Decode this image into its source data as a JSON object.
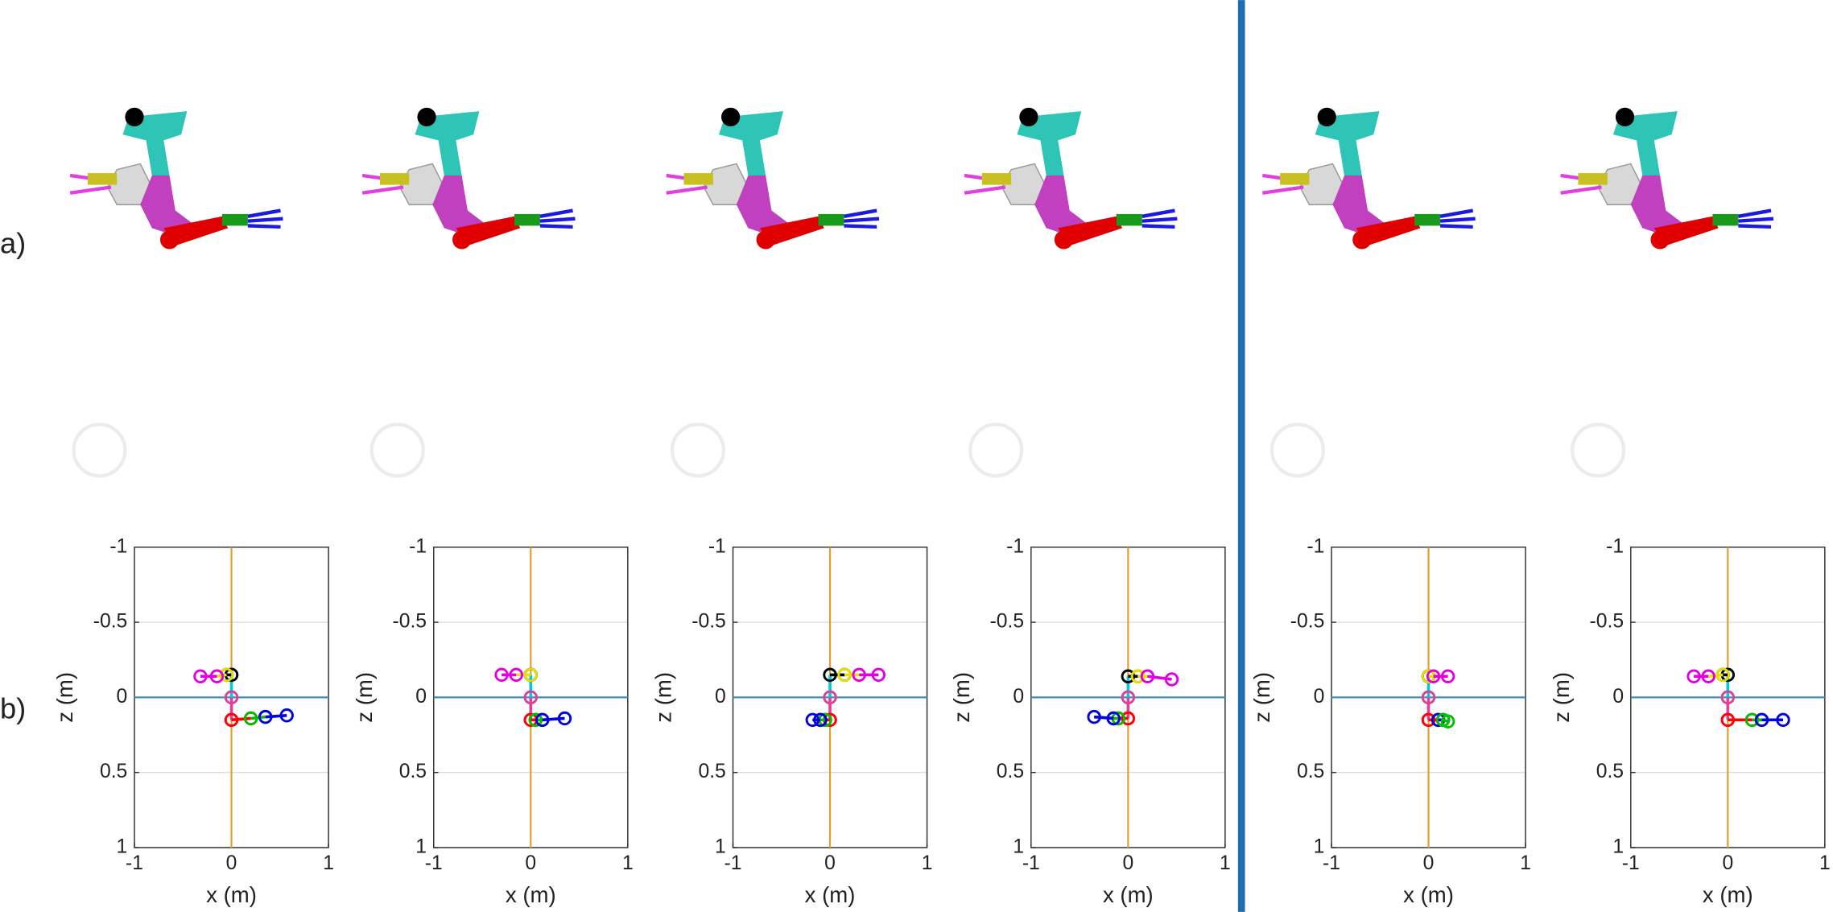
{
  "panel_labels": [
    "a)",
    "b)"
  ],
  "chart_data": [
    {
      "type": "line",
      "xlabel": "x (m)",
      "ylabel": "z (m)",
      "xlim": [
        -1,
        1
      ],
      "ylim": [
        -1,
        1
      ],
      "y_inverted": true,
      "xticks": [
        -1,
        0,
        1
      ],
      "yticks": [
        -1,
        -0.5,
        0,
        0.5,
        1
      ],
      "grid": true,
      "vline": {
        "value": 0,
        "color": "#e0a030"
      },
      "hline": {
        "value": 0,
        "color": "#3a8fc0"
      },
      "series": [
        {
          "color": "#00c8e0",
          "x": [
            0,
            0
          ],
          "values": [
            0,
            -0.15
          ]
        },
        {
          "color": "#e0409a",
          "x": [
            0,
            0
          ],
          "values": [
            0,
            0.15
          ]
        },
        {
          "color": "#000000",
          "x": [
            0,
            -0.05
          ],
          "values": [
            -0.15,
            -0.15
          ]
        },
        {
          "color": "#e8e000",
          "x": [
            -0.05,
            -0.15
          ],
          "values": [
            -0.15,
            -0.14
          ]
        },
        {
          "color": "#e000e0",
          "x": [
            -0.15,
            -0.32
          ],
          "values": [
            -0.14,
            -0.14
          ]
        },
        {
          "color": "#ff0000",
          "x": [
            0,
            0.2
          ],
          "values": [
            0.15,
            0.14
          ]
        },
        {
          "color": "#00c000",
          "x": [
            0.2,
            0.35
          ],
          "values": [
            0.14,
            0.13
          ]
        },
        {
          "color": "#0000e0",
          "x": [
            0.35,
            0.57
          ],
          "values": [
            0.13,
            0.12
          ]
        }
      ]
    },
    {
      "type": "line",
      "xlabel": "x (m)",
      "ylabel": "z (m)",
      "xlim": [
        -1,
        1
      ],
      "ylim": [
        -1,
        1
      ],
      "y_inverted": true,
      "xticks": [
        -1,
        0,
        1
      ],
      "yticks": [
        -1,
        -0.5,
        0,
        0.5,
        1
      ],
      "grid": true,
      "vline": {
        "value": 0,
        "color": "#e0a030"
      },
      "hline": {
        "value": 0,
        "color": "#3a8fc0"
      },
      "series": [
        {
          "color": "#00c8e0",
          "x": [
            0,
            0
          ],
          "values": [
            0,
            -0.15
          ]
        },
        {
          "color": "#e0409a",
          "x": [
            0,
            0
          ],
          "values": [
            0,
            0.15
          ]
        },
        {
          "color": "#000000",
          "x": [
            0,
            0
          ],
          "values": [
            -0.15,
            -0.15
          ]
        },
        {
          "color": "#e8e000",
          "x": [
            0,
            -0.15
          ],
          "values": [
            -0.15,
            -0.15
          ]
        },
        {
          "color": "#e000e0",
          "x": [
            -0.15,
            -0.3
          ],
          "values": [
            -0.15,
            -0.15
          ]
        },
        {
          "color": "#ff0000",
          "x": [
            0,
            0.05
          ],
          "values": [
            0.15,
            0.15
          ]
        },
        {
          "color": "#00c000",
          "x": [
            0.05,
            0.12
          ],
          "values": [
            0.15,
            0.15
          ]
        },
        {
          "color": "#0000e0",
          "x": [
            0.12,
            0.35
          ],
          "values": [
            0.15,
            0.14
          ]
        }
      ]
    },
    {
      "type": "line",
      "xlabel": "x (m)",
      "ylabel": "z (m)",
      "xlim": [
        -1,
        1
      ],
      "ylim": [
        -1,
        1
      ],
      "y_inverted": true,
      "xticks": [
        -1,
        0,
        1
      ],
      "yticks": [
        -1,
        -0.5,
        0,
        0.5,
        1
      ],
      "grid": true,
      "vline": {
        "value": 0,
        "color": "#e0a030"
      },
      "hline": {
        "value": 0,
        "color": "#3a8fc0"
      },
      "series": [
        {
          "color": "#00c8e0",
          "x": [
            0,
            0
          ],
          "values": [
            0,
            -0.15
          ]
        },
        {
          "color": "#e0409a",
          "x": [
            0,
            0
          ],
          "values": [
            0,
            0.15
          ]
        },
        {
          "color": "#000000",
          "x": [
            0,
            0.15
          ],
          "values": [
            -0.15,
            -0.15
          ]
        },
        {
          "color": "#e8e000",
          "x": [
            0.15,
            0.3
          ],
          "values": [
            -0.15,
            -0.15
          ]
        },
        {
          "color": "#e000e0",
          "x": [
            0.3,
            0.5
          ],
          "values": [
            -0.15,
            -0.15
          ]
        },
        {
          "color": "#ff0000",
          "x": [
            0,
            -0.05
          ],
          "values": [
            0.15,
            0.15
          ]
        },
        {
          "color": "#00c000",
          "x": [
            -0.05,
            -0.1
          ],
          "values": [
            0.15,
            0.15
          ]
        },
        {
          "color": "#0000e0",
          "x": [
            -0.1,
            -0.18
          ],
          "values": [
            0.15,
            0.15
          ]
        }
      ]
    },
    {
      "type": "line",
      "xlabel": "x (m)",
      "ylabel": "z (m)",
      "xlim": [
        -1,
        1
      ],
      "ylim": [
        -1,
        1
      ],
      "y_inverted": true,
      "xticks": [
        -1,
        0,
        1
      ],
      "yticks": [
        -1,
        -0.5,
        0,
        0.5,
        1
      ],
      "grid": true,
      "vline": {
        "value": 0,
        "color": "#e0a030"
      },
      "hline": {
        "value": 0,
        "color": "#3a8fc0"
      },
      "series": [
        {
          "color": "#00c8e0",
          "x": [
            0,
            0
          ],
          "values": [
            0,
            -0.14
          ]
        },
        {
          "color": "#e0409a",
          "x": [
            0,
            0
          ],
          "values": [
            0,
            0.14
          ]
        },
        {
          "color": "#000000",
          "x": [
            0,
            0.1
          ],
          "values": [
            -0.14,
            -0.14
          ]
        },
        {
          "color": "#e8e000",
          "x": [
            0.1,
            0.2
          ],
          "values": [
            -0.14,
            -0.14
          ]
        },
        {
          "color": "#e000e0",
          "x": [
            0.2,
            0.45
          ],
          "values": [
            -0.14,
            -0.12
          ]
        },
        {
          "color": "#ff0000",
          "x": [
            0,
            -0.1
          ],
          "values": [
            0.14,
            0.14
          ]
        },
        {
          "color": "#00c000",
          "x": [
            -0.1,
            -0.15
          ],
          "values": [
            0.14,
            0.14
          ]
        },
        {
          "color": "#0000e0",
          "x": [
            -0.15,
            -0.35
          ],
          "values": [
            0.14,
            0.13
          ]
        }
      ]
    },
    {
      "type": "line",
      "xlabel": "x (m)",
      "ylabel": "z (m)",
      "xlim": [
        -1,
        1
      ],
      "ylim": [
        -1,
        1
      ],
      "y_inverted": true,
      "xticks": [
        -1,
        0,
        1
      ],
      "yticks": [
        -1,
        -0.5,
        0,
        0.5,
        1
      ],
      "grid": true,
      "vline": {
        "value": 0,
        "color": "#e0a030"
      },
      "hline": {
        "value": 0,
        "color": "#3a8fc0"
      },
      "series": [
        {
          "color": "#00c8e0",
          "x": [
            0,
            0
          ],
          "values": [
            0,
            -0.14
          ]
        },
        {
          "color": "#e0409a",
          "x": [
            0,
            0
          ],
          "values": [
            0,
            0.15
          ]
        },
        {
          "color": "#000000",
          "x": [
            0,
            0
          ],
          "values": [
            -0.14,
            -0.14
          ]
        },
        {
          "color": "#e8e000",
          "x": [
            0,
            0.05
          ],
          "values": [
            -0.14,
            -0.14
          ]
        },
        {
          "color": "#e000e0",
          "x": [
            0.05,
            0.2
          ],
          "values": [
            -0.14,
            -0.14
          ]
        },
        {
          "color": "#ff0000",
          "x": [
            0,
            0.1
          ],
          "values": [
            0.15,
            0.15
          ]
        },
        {
          "color": "#0000e0",
          "x": [
            0.1,
            0.15
          ],
          "values": [
            0.15,
            0.15
          ]
        },
        {
          "color": "#00c000",
          "x": [
            0.15,
            0.2
          ],
          "values": [
            0.15,
            0.16
          ]
        }
      ]
    },
    {
      "type": "line",
      "xlabel": "x (m)",
      "ylabel": "z (m)",
      "xlim": [
        -1,
        1
      ],
      "ylim": [
        -1,
        1
      ],
      "y_inverted": true,
      "xticks": [
        -1,
        0,
        1
      ],
      "yticks": [
        -1,
        -0.5,
        0,
        0.5,
        1
      ],
      "grid": true,
      "vline": {
        "value": 0,
        "color": "#e0a030"
      },
      "hline": {
        "value": 0,
        "color": "#3a8fc0"
      },
      "series": [
        {
          "color": "#00c8e0",
          "x": [
            0,
            0
          ],
          "values": [
            0,
            -0.15
          ]
        },
        {
          "color": "#e0409a",
          "x": [
            0,
            0
          ],
          "values": [
            0,
            0.15
          ]
        },
        {
          "color": "#000000",
          "x": [
            0,
            -0.05
          ],
          "values": [
            -0.15,
            -0.15
          ]
        },
        {
          "color": "#e8e000",
          "x": [
            -0.05,
            -0.2
          ],
          "values": [
            -0.15,
            -0.14
          ]
        },
        {
          "color": "#e000e0",
          "x": [
            -0.2,
            -0.35
          ],
          "values": [
            -0.14,
            -0.14
          ]
        },
        {
          "color": "#ff0000",
          "x": [
            0,
            0.25
          ],
          "values": [
            0.15,
            0.15
          ]
        },
        {
          "color": "#00c000",
          "x": [
            0.25,
            0.35
          ],
          "values": [
            0.15,
            0.15
          ]
        },
        {
          "color": "#0000e0",
          "x": [
            0.35,
            0.57
          ],
          "values": [
            0.15,
            0.15
          ]
        }
      ]
    }
  ]
}
